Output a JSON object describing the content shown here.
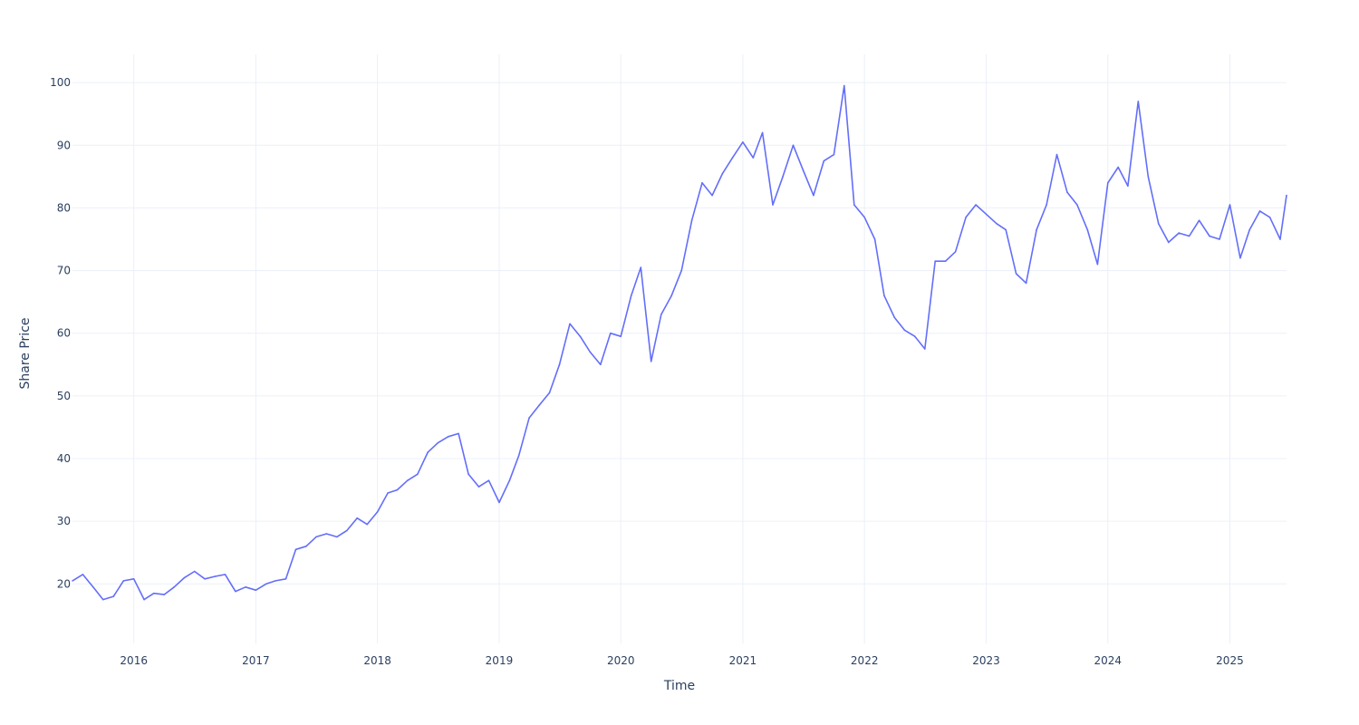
{
  "chart_data": {
    "type": "line",
    "xlabel": "Time",
    "ylabel": "Share Price",
    "xlim": [
      "2015-07-01",
      "2025-06-20"
    ],
    "ylim": [
      10.5,
      104.5
    ],
    "x_ticks": [
      "2016",
      "2017",
      "2018",
      "2019",
      "2020",
      "2021",
      "2022",
      "2023",
      "2024",
      "2025"
    ],
    "y_ticks": [
      20,
      30,
      40,
      50,
      60,
      70,
      80,
      90,
      100
    ],
    "grid": true,
    "legend": "none",
    "line_color": "#636efa",
    "series": [
      {
        "x": [
          "2015-07-01",
          "2015-08-01",
          "2015-09-01",
          "2015-10-01",
          "2015-11-01",
          "2015-12-01",
          "2016-01-01",
          "2016-02-01",
          "2016-03-01",
          "2016-04-01",
          "2016-05-01",
          "2016-06-01",
          "2016-07-01",
          "2016-08-01",
          "2016-09-01",
          "2016-10-01",
          "2016-11-01",
          "2016-12-01",
          "2017-01-01",
          "2017-02-01",
          "2017-03-01",
          "2017-04-01",
          "2017-05-01",
          "2017-06-01",
          "2017-07-01",
          "2017-08-01",
          "2017-09-01",
          "2017-10-01",
          "2017-11-01",
          "2017-12-01",
          "2018-01-01",
          "2018-02-01",
          "2018-03-01",
          "2018-04-01",
          "2018-05-01",
          "2018-06-01",
          "2018-07-01",
          "2018-08-01",
          "2018-09-01",
          "2018-10-01",
          "2018-11-01",
          "2018-12-01",
          "2019-01-01",
          "2019-02-01",
          "2019-03-01",
          "2019-04-01",
          "2019-05-01",
          "2019-06-01",
          "2019-07-01",
          "2019-08-01",
          "2019-09-01",
          "2019-10-01",
          "2019-11-01",
          "2019-12-01",
          "2020-01-01",
          "2020-02-01",
          "2020-03-01",
          "2020-04-01",
          "2020-05-01",
          "2020-06-01",
          "2020-07-01",
          "2020-08-01",
          "2020-09-01",
          "2020-10-01",
          "2020-11-01",
          "2020-12-01",
          "2021-01-01",
          "2021-02-01",
          "2021-03-01",
          "2021-04-01",
          "2021-05-01",
          "2021-06-01",
          "2021-07-01",
          "2021-08-01",
          "2021-09-01",
          "2021-10-01",
          "2021-11-01",
          "2021-12-01",
          "2022-01-01",
          "2022-02-01",
          "2022-03-01",
          "2022-04-01",
          "2022-05-01",
          "2022-06-01",
          "2022-07-01",
          "2022-08-01",
          "2022-09-01",
          "2022-10-01",
          "2022-11-01",
          "2022-12-01",
          "2023-01-01",
          "2023-02-01",
          "2023-03-01",
          "2023-04-01",
          "2023-05-01",
          "2023-06-01",
          "2023-07-01",
          "2023-08-01",
          "2023-09-01",
          "2023-10-01",
          "2023-11-01",
          "2023-12-01",
          "2024-01-01",
          "2024-02-01",
          "2024-03-01",
          "2024-04-01",
          "2024-05-01",
          "2024-06-01",
          "2024-07-01",
          "2024-08-01",
          "2024-09-01",
          "2024-10-01",
          "2024-11-01",
          "2024-12-01",
          "2025-01-01",
          "2025-02-01",
          "2025-03-01",
          "2025-04-01",
          "2025-05-01",
          "2025-06-01",
          "2025-06-20"
        ],
        "y": [
          20.5,
          21.5,
          19.5,
          17.5,
          18.0,
          20.5,
          20.8,
          17.5,
          18.5,
          18.3,
          19.5,
          21.0,
          22.0,
          20.8,
          21.2,
          21.5,
          18.8,
          19.5,
          19.0,
          20.0,
          20.5,
          20.8,
          25.5,
          26.0,
          27.5,
          28.0,
          27.5,
          28.5,
          30.5,
          29.5,
          31.5,
          34.5,
          35.0,
          36.5,
          37.5,
          41.0,
          42.5,
          43.5,
          44.0,
          37.5,
          35.5,
          36.5,
          33.0,
          36.5,
          40.5,
          46.5,
          48.5,
          50.5,
          55.0,
          61.5,
          59.5,
          57.0,
          55.0,
          60.0,
          59.5,
          66.0,
          70.5,
          55.5,
          63.0,
          66.0,
          70.0,
          78.0,
          84.0,
          82.0,
          85.5,
          88.0,
          90.5,
          88.0,
          92.0,
          80.5,
          85.0,
          90.0,
          86.0,
          82.0,
          87.5,
          88.5,
          99.5,
          80.5,
          78.5,
          75.0,
          66.0,
          62.5,
          60.5,
          59.5,
          57.5,
          71.5,
          71.5,
          73.0,
          78.5,
          80.5,
          79.0,
          77.5,
          76.5,
          69.5,
          68.0,
          76.5,
          80.5,
          88.5,
          82.5,
          80.5,
          76.5,
          71.0,
          84.0,
          86.5,
          83.5,
          97.0,
          85.0,
          77.5,
          74.5,
          76.0,
          75.5,
          78.0,
          75.5,
          75.0,
          80.5,
          72.0,
          76.5,
          79.5,
          78.5,
          75.0,
          82.0
        ]
      }
    ]
  }
}
